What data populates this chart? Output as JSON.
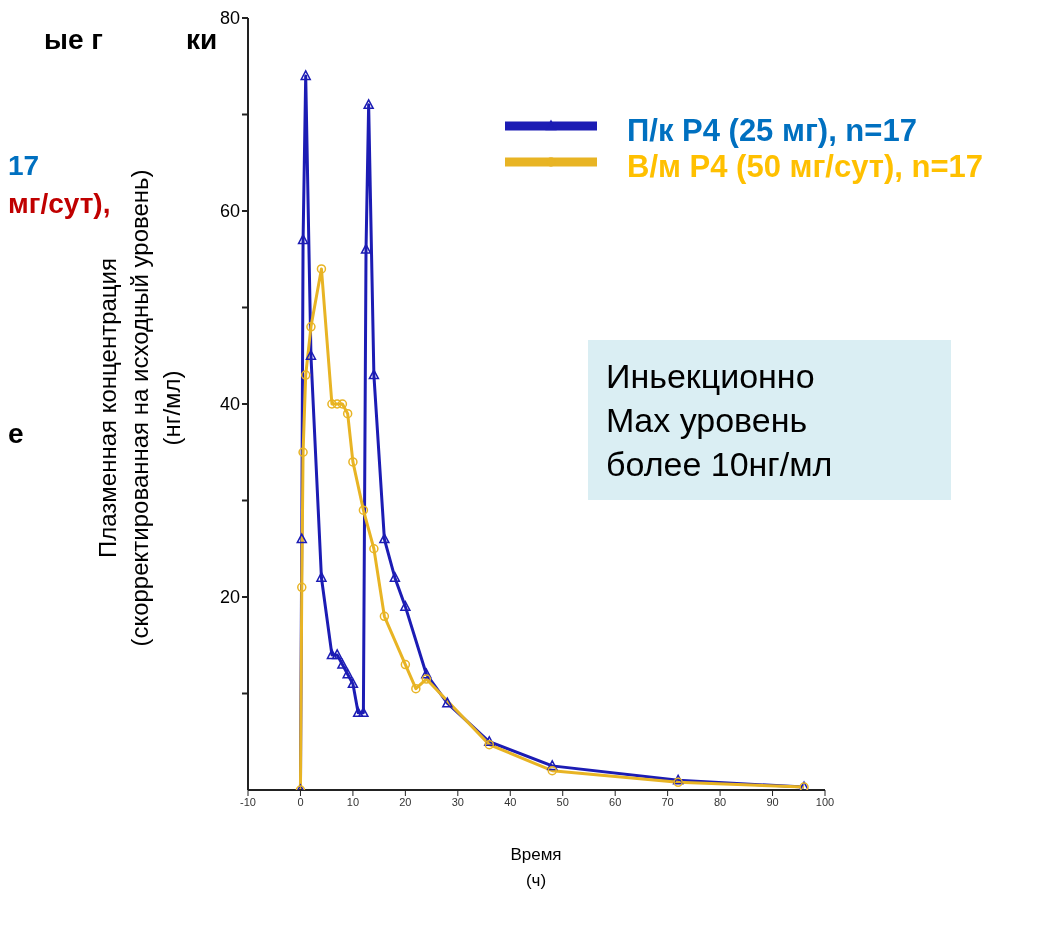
{
  "chart_data": {
    "type": "line",
    "xlabel": "Время\n(ч)",
    "ylabel": "Плазменная концентрация\n(скорректированная на исходный уровень)\n(нг/мл)",
    "xlim": [
      -10,
      100
    ],
    "xticks": [
      -10,
      0,
      10,
      20,
      30,
      40,
      50,
      60,
      70,
      80,
      90,
      100
    ],
    "ylim": [
      0,
      80
    ],
    "yticks": [
      {
        "value": 10,
        "label": null
      },
      20,
      {
        "value": 30,
        "label": null
      },
      40,
      {
        "value": 50,
        "label": null
      },
      60,
      {
        "value": 70,
        "label": null
      },
      80
    ],
    "legend": "top right",
    "line_style": "solid",
    "series": [
      {
        "name": "П/к P4 (25 мг), n=17",
        "color": "#1c1cb4",
        "marker": "triangle",
        "x": [
          0,
          0.25,
          0.5,
          1,
          2,
          4,
          6,
          7,
          8,
          9,
          10,
          11,
          12,
          12.5,
          13,
          14,
          16,
          18,
          20,
          24,
          28,
          36,
          48,
          72,
          96
        ],
        "values": [
          0,
          26,
          57,
          74,
          45,
          22,
          14,
          14,
          13,
          12,
          11,
          8,
          8,
          56,
          71,
          43,
          26,
          22,
          19,
          12,
          9,
          5,
          2.5,
          1,
          0.3
        ]
      },
      {
        "name": "В/м P4 (50 мг/сут), n=17",
        "color": "#e8b424",
        "marker": "circle",
        "x": [
          0,
          0.25,
          0.5,
          1,
          2,
          4,
          6,
          7,
          8,
          9,
          10,
          12,
          14,
          16,
          20,
          22,
          24,
          36,
          48,
          72,
          96
        ],
        "values": [
          0,
          21,
          35,
          43,
          48,
          54,
          40,
          40,
          40,
          39,
          34,
          29,
          25,
          18,
          13,
          10.5,
          11.5,
          4.7,
          2,
          0.8,
          0.3
        ]
      }
    ],
    "annotations": [
      "Иньекционно\nMax уровень\nболее 10нг/мл",
      "ые г",
      "ки",
      "17",
      "мг/сут),",
      "е"
    ]
  }
}
